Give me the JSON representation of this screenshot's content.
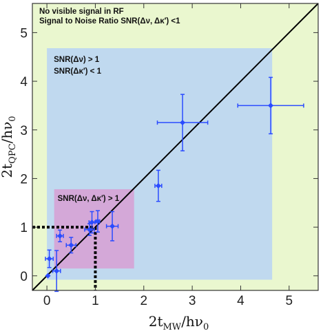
{
  "chart_data": {
    "type": "scatter",
    "xlim": [
      -0.3,
      5.6
    ],
    "ylim": [
      -0.3,
      5.6
    ],
    "xticks": [
      0,
      1,
      2,
      3,
      4,
      5
    ],
    "yticks": [
      0,
      1,
      2,
      3,
      4,
      5
    ],
    "xlabel": {
      "main": "2t",
      "sub": "MW",
      "tail": "/hν",
      "sub2": "0"
    },
    "ylabel": {
      "main": "2t",
      "sub": "QPC",
      "tail": "/hν",
      "sub2": "0"
    },
    "grid": false,
    "regions": [
      {
        "name": "no-signal",
        "x": [
          -0.3,
          5.6
        ],
        "y": [
          -0.3,
          5.6
        ],
        "color": "#eaf7cf",
        "labels": [
          "No visible signal in RF",
          "Signal to Noise Ratio SNR(Δν, Δκ′) <1"
        ]
      },
      {
        "name": "snr-dnu",
        "x": [
          0.0,
          4.65
        ],
        "y": [
          -0.08,
          4.68
        ],
        "color": "#c0d9ef",
        "labels": [
          "SNR(Δν)  > 1",
          "SNR(Δκ′)  < 1"
        ]
      },
      {
        "name": "snr-both",
        "x": [
          0.15,
          1.8
        ],
        "y": [
          0.15,
          1.78
        ],
        "color": "#d4a8d8",
        "labels": [
          "SNR(Δν, Δκ′) > 1"
        ]
      }
    ],
    "colors": {
      "points": "#2a4bff",
      "line": "#000000"
    },
    "reference_line": {
      "x": [
        -0.3,
        5.6
      ],
      "y": [
        -0.3,
        5.6
      ]
    },
    "guide_point": {
      "x": 1,
      "y": 1
    },
    "points": [
      {
        "x": 0.02,
        "y": 0.0,
        "xerr": 0.0,
        "yerr": 0.0
      },
      {
        "x": 0.05,
        "y": 0.35,
        "xerr": 0.08,
        "yerr": 0.18
      },
      {
        "x": 0.2,
        "y": 0.1,
        "xerr": 0.08,
        "yerr": 0.42
      },
      {
        "x": 0.27,
        "y": 0.82,
        "xerr": 0.07,
        "yerr": 0.12
      },
      {
        "x": 0.5,
        "y": 0.63,
        "xerr": 0.1,
        "yerr": 0.16
      },
      {
        "x": 0.88,
        "y": 0.95,
        "xerr": 0.1,
        "yerr": 0.12
      },
      {
        "x": 0.93,
        "y": 1.1,
        "xerr": 0.06,
        "yerr": 0.22
      },
      {
        "x": 1.05,
        "y": 1.12,
        "xerr": 0.04,
        "yerr": 0.22
      },
      {
        "x": 1.35,
        "y": 1.02,
        "xerr": 0.12,
        "yerr": 0.3
      },
      {
        "x": 2.3,
        "y": 1.85,
        "xerr": 0.07,
        "yerr": 0.32
      },
      {
        "x": 2.8,
        "y": 3.15,
        "xerr": 0.52,
        "yerr": 0.58
      },
      {
        "x": 4.62,
        "y": 3.5,
        "xerr": 0.68,
        "yerr": 0.58
      }
    ]
  }
}
